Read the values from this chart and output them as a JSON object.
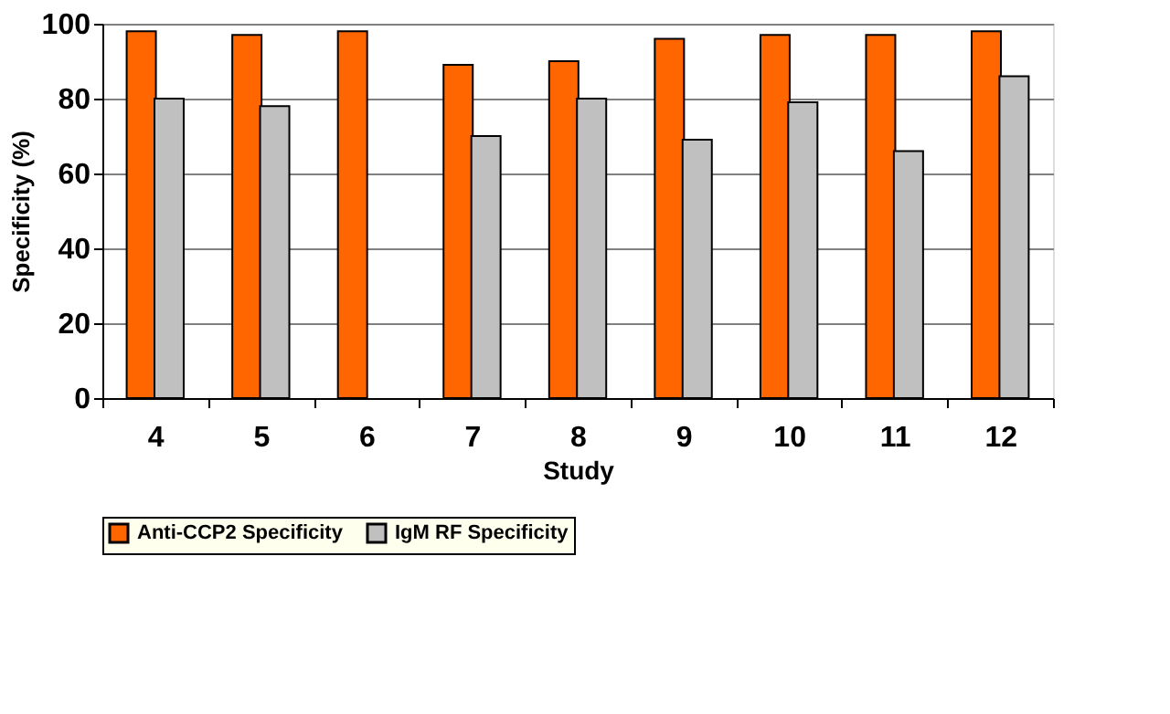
{
  "chart_data": {
    "type": "bar",
    "xlabel": "Study",
    "ylabel": "Specificity (%)",
    "categories": [
      "4",
      "5",
      "6",
      "7",
      "8",
      "9",
      "10",
      "11",
      "12"
    ],
    "series": [
      {
        "name": "Anti-CCP2 Specificity",
        "color": "#ff6600",
        "values": [
          98,
          97,
          98,
          89,
          90,
          96,
          97,
          97,
          98
        ]
      },
      {
        "name": "IgM RF Specificity",
        "color": "#c0c0c0",
        "values": [
          80,
          78,
          null,
          70,
          80,
          69,
          79,
          66,
          86
        ]
      }
    ],
    "ylim": [
      0,
      100
    ],
    "yticks": [
      0,
      20,
      40,
      60,
      80,
      100
    ],
    "grid": "y",
    "legend": "bottom"
  }
}
